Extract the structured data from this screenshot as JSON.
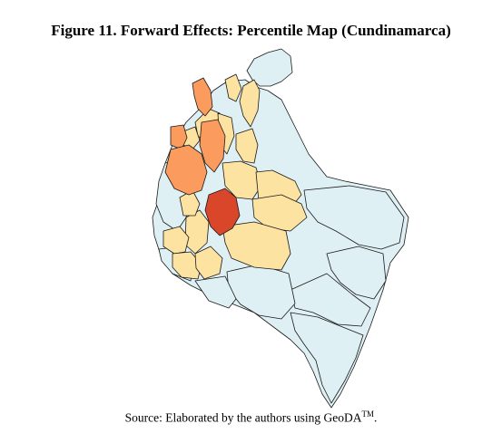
{
  "figure": {
    "title": "Figure 11. Forward Effects: Percentile Map (Cundinamarca)"
  },
  "source": {
    "text": "Source: Elaborated by the authors using GeoDA",
    "superscript": "TM",
    "end": "."
  },
  "colors": {
    "background_region": "#dff0f4",
    "low_percentile": "#fde3a1",
    "mid_percentile": "#fb9b5e",
    "high_percentile": "#d9462a",
    "border": "#1a1a1a"
  },
  "regions": [
    {
      "category": "background_region",
      "fill": "#dff0f4"
    },
    {
      "category": "low_percentile",
      "fill": "#fde3a1"
    },
    {
      "category": "mid_percentile",
      "fill": "#fb9b5e"
    },
    {
      "category": "high_percentile",
      "fill": "#d9462a"
    }
  ]
}
